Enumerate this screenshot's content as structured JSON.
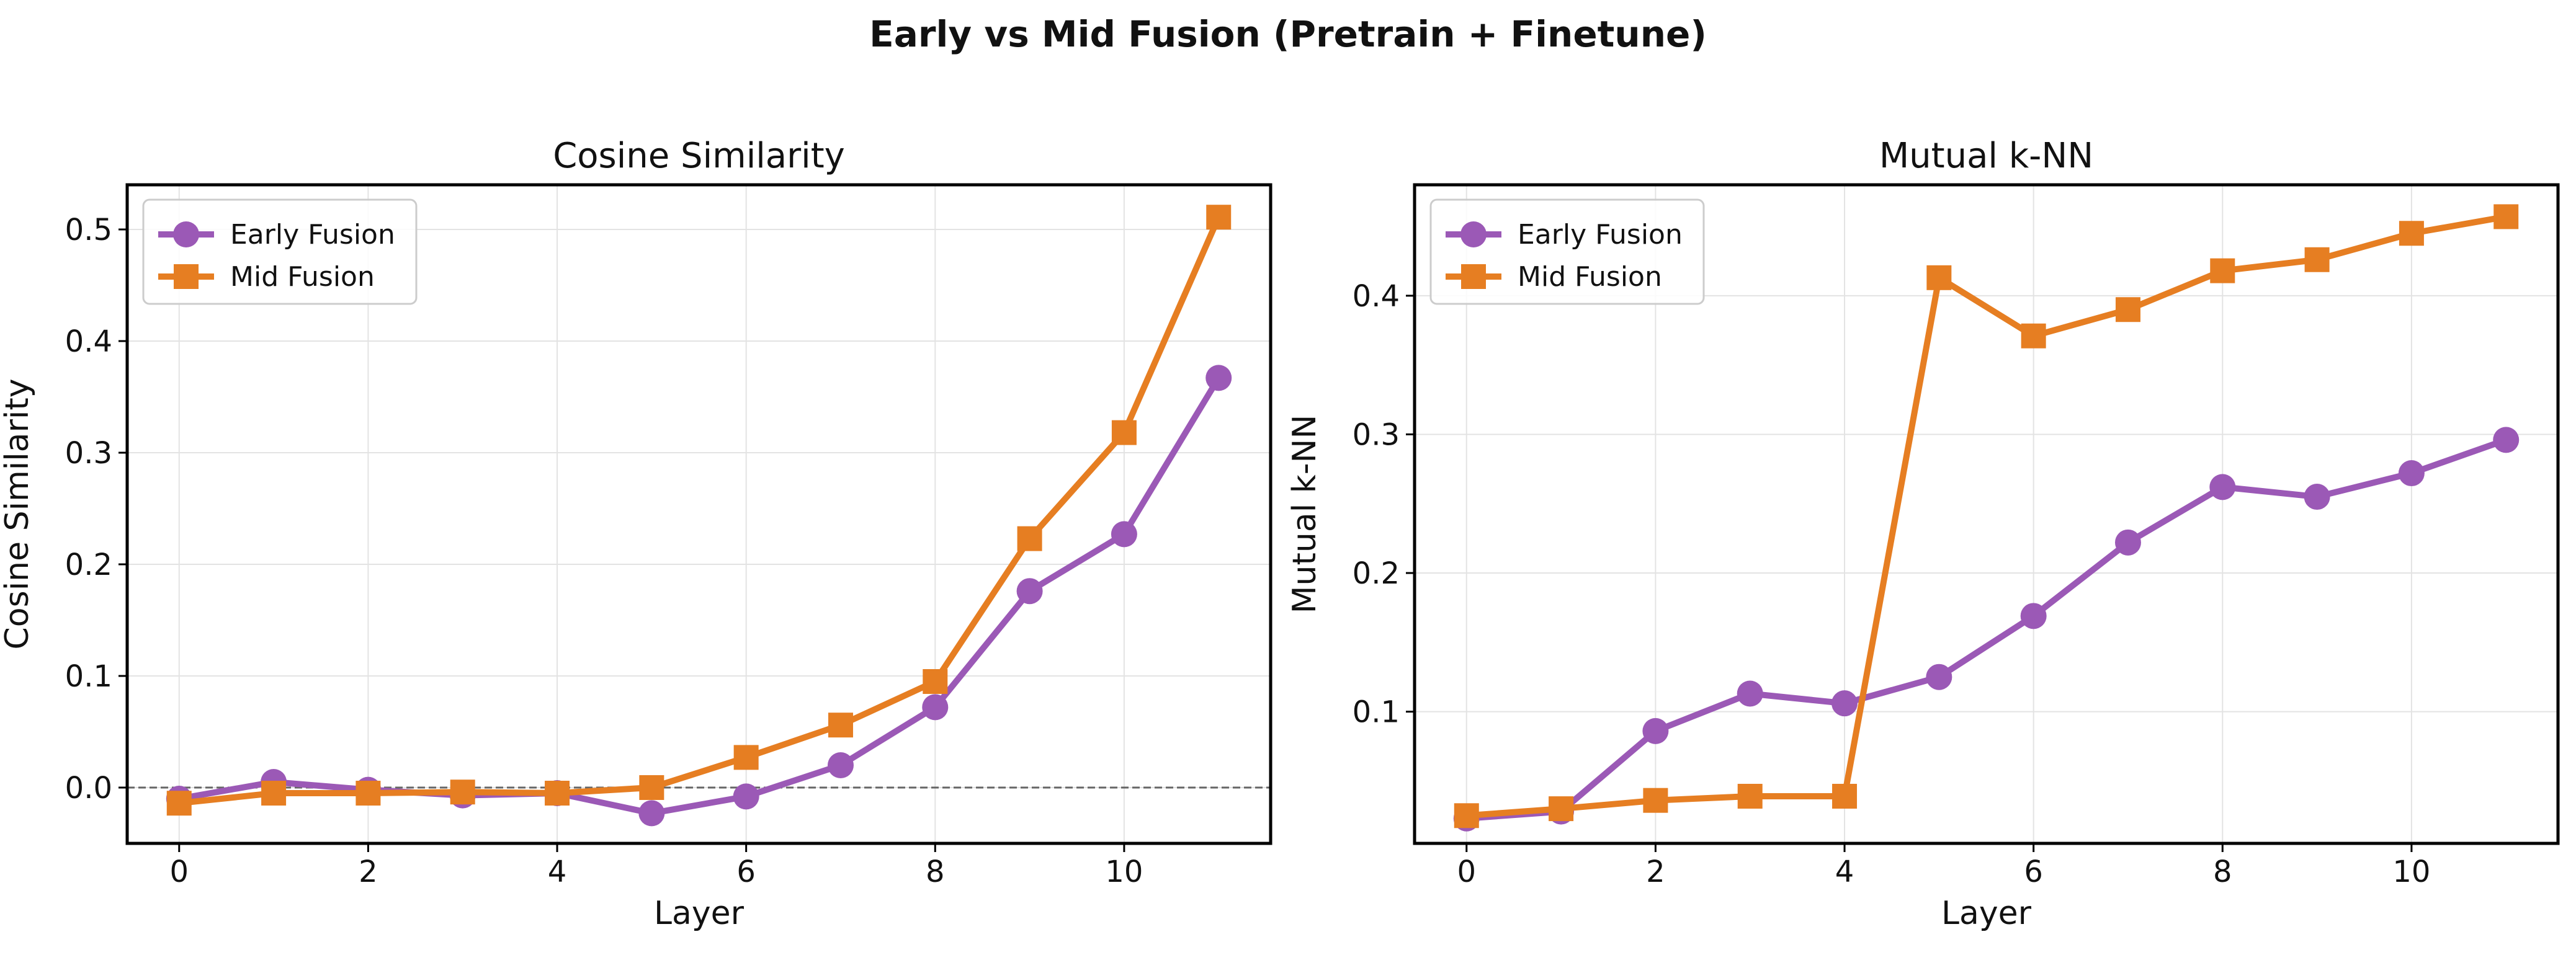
{
  "figure": {
    "title": "Early vs Mid Fusion (Pretrain + Finetune)"
  },
  "colors": {
    "early": "#9b59b6",
    "mid": "#e67e22",
    "grid": "#e3e3e3",
    "zero_line": "#666666"
  },
  "chart_data": [
    {
      "type": "line",
      "title": "Cosine Similarity",
      "xlabel": "Layer",
      "ylabel": "Cosine Similarity",
      "x": [
        0,
        1,
        2,
        3,
        4,
        5,
        6,
        7,
        8,
        9,
        10,
        11
      ],
      "xlim": [
        -0.55,
        11.55
      ],
      "ylim": [
        -0.05,
        0.54
      ],
      "xticks": [
        0,
        2,
        4,
        6,
        8,
        10
      ],
      "yticks": [
        0.0,
        0.1,
        0.2,
        0.3,
        0.4,
        0.5
      ],
      "ytick_labels": [
        "0.0",
        "0.1",
        "0.2",
        "0.3",
        "0.4",
        "0.5"
      ],
      "grid": true,
      "zero_reference_line": true,
      "legend": "top-left",
      "series": [
        {
          "name": "Early Fusion",
          "marker": "circle",
          "color": "#9b59b6",
          "values": [
            -0.01,
            0.005,
            -0.002,
            -0.007,
            -0.005,
            -0.023,
            -0.008,
            0.02,
            0.072,
            0.176,
            0.227,
            0.367
          ]
        },
        {
          "name": "Mid Fusion",
          "marker": "square",
          "color": "#e67e22",
          "values": [
            -0.014,
            -0.005,
            -0.005,
            -0.004,
            -0.005,
            0.0,
            0.027,
            0.056,
            0.095,
            0.223,
            0.318,
            0.511
          ]
        }
      ]
    },
    {
      "type": "line",
      "title": "Mutual k-NN",
      "xlabel": "Layer",
      "ylabel": "Mutual k-NN",
      "x": [
        0,
        1,
        2,
        3,
        4,
        5,
        6,
        7,
        8,
        9,
        10,
        11
      ],
      "xlim": [
        -0.55,
        11.55
      ],
      "ylim": [
        0.005,
        0.48
      ],
      "xticks": [
        0,
        2,
        4,
        6,
        8,
        10
      ],
      "yticks": [
        0.1,
        0.2,
        0.3,
        0.4
      ],
      "ytick_labels": [
        "0.1",
        "0.2",
        "0.3",
        "0.4"
      ],
      "grid": true,
      "zero_reference_line": false,
      "legend": "top-left",
      "series": [
        {
          "name": "Early Fusion",
          "marker": "circle",
          "color": "#9b59b6",
          "values": [
            0.023,
            0.028,
            0.086,
            0.113,
            0.106,
            0.125,
            0.169,
            0.222,
            0.262,
            0.255,
            0.272,
            0.296
          ]
        },
        {
          "name": "Mid Fusion",
          "marker": "square",
          "color": "#e67e22",
          "values": [
            0.025,
            0.03,
            0.036,
            0.039,
            0.039,
            0.413,
            0.371,
            0.39,
            0.418,
            0.426,
            0.445,
            0.457
          ]
        }
      ]
    }
  ]
}
